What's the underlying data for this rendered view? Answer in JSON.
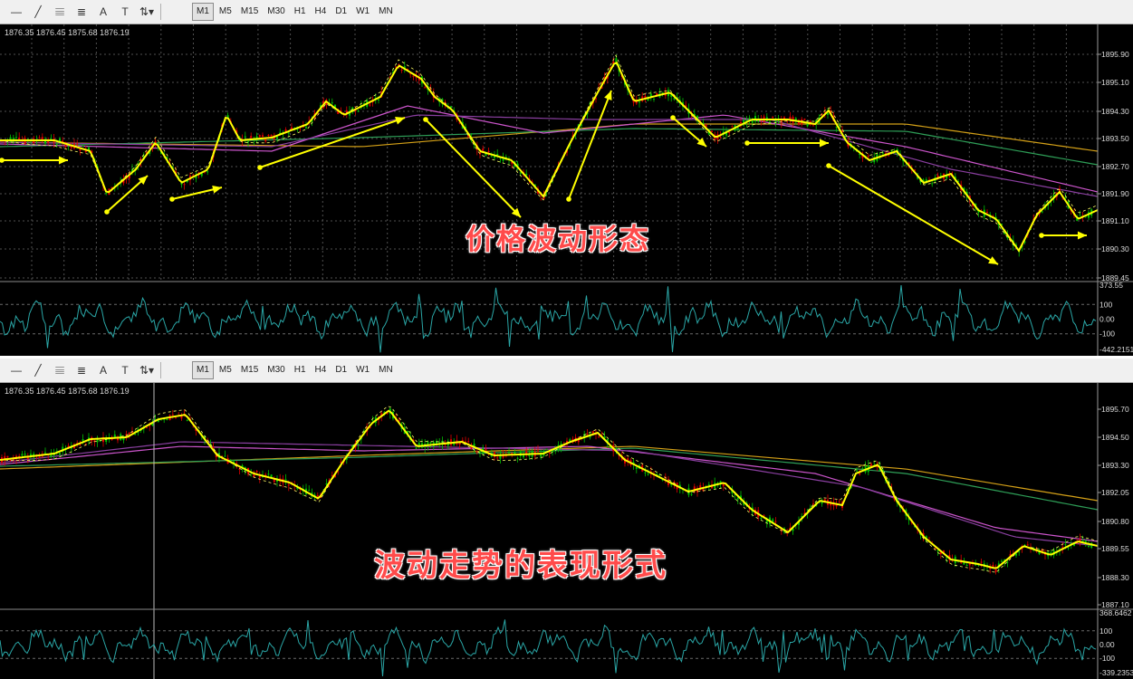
{
  "toolbar": {
    "icons": [
      "line-tool-icon",
      "trendline-tool-icon",
      "fibonacci-tool-icon",
      "fibonacci-fan-icon",
      "text-tool-icon",
      "label-tool-icon",
      "arrows-tool-icon"
    ],
    "timeframes": [
      "M1",
      "M5",
      "M15",
      "M30",
      "H1",
      "H4",
      "D1",
      "W1",
      "MN"
    ],
    "active_timeframe": "M1"
  },
  "top_chart": {
    "ohlc_text": "1876.35 1876.45 1875.68 1876.19",
    "caption": "价格波动形态",
    "price_labels": [
      "1895.90",
      "1895.10",
      "1894.30",
      "1893.50",
      "1892.70",
      "1891.90",
      "1891.10",
      "1890.30",
      "1889.45"
    ],
    "oscillator_labels": [
      "373.55",
      "100",
      "0.00",
      "-100",
      "-442.2151"
    ]
  },
  "bottom_chart": {
    "ohlc_text": "1876.35 1876.45 1875.68 1876.19",
    "caption": "波动走势的表现形式",
    "price_labels": [
      "1895.70",
      "1894.50",
      "1893.30",
      "1892.05",
      "1890.80",
      "1889.55",
      "1888.30",
      "1887.10"
    ],
    "oscillator_labels": [
      "368.6462",
      "100",
      "0.00",
      "-100",
      "-339.2353"
    ]
  },
  "colors": {
    "price": "#ffff00",
    "ma_magenta": "#cc55cc",
    "ma_green": "#2e9e57",
    "ma_gold": "#d4a017",
    "candle_up": "#00c000",
    "candle_down": "#e00000",
    "oscillator": "#2aa6a6",
    "arrow": "#ffff00"
  }
}
